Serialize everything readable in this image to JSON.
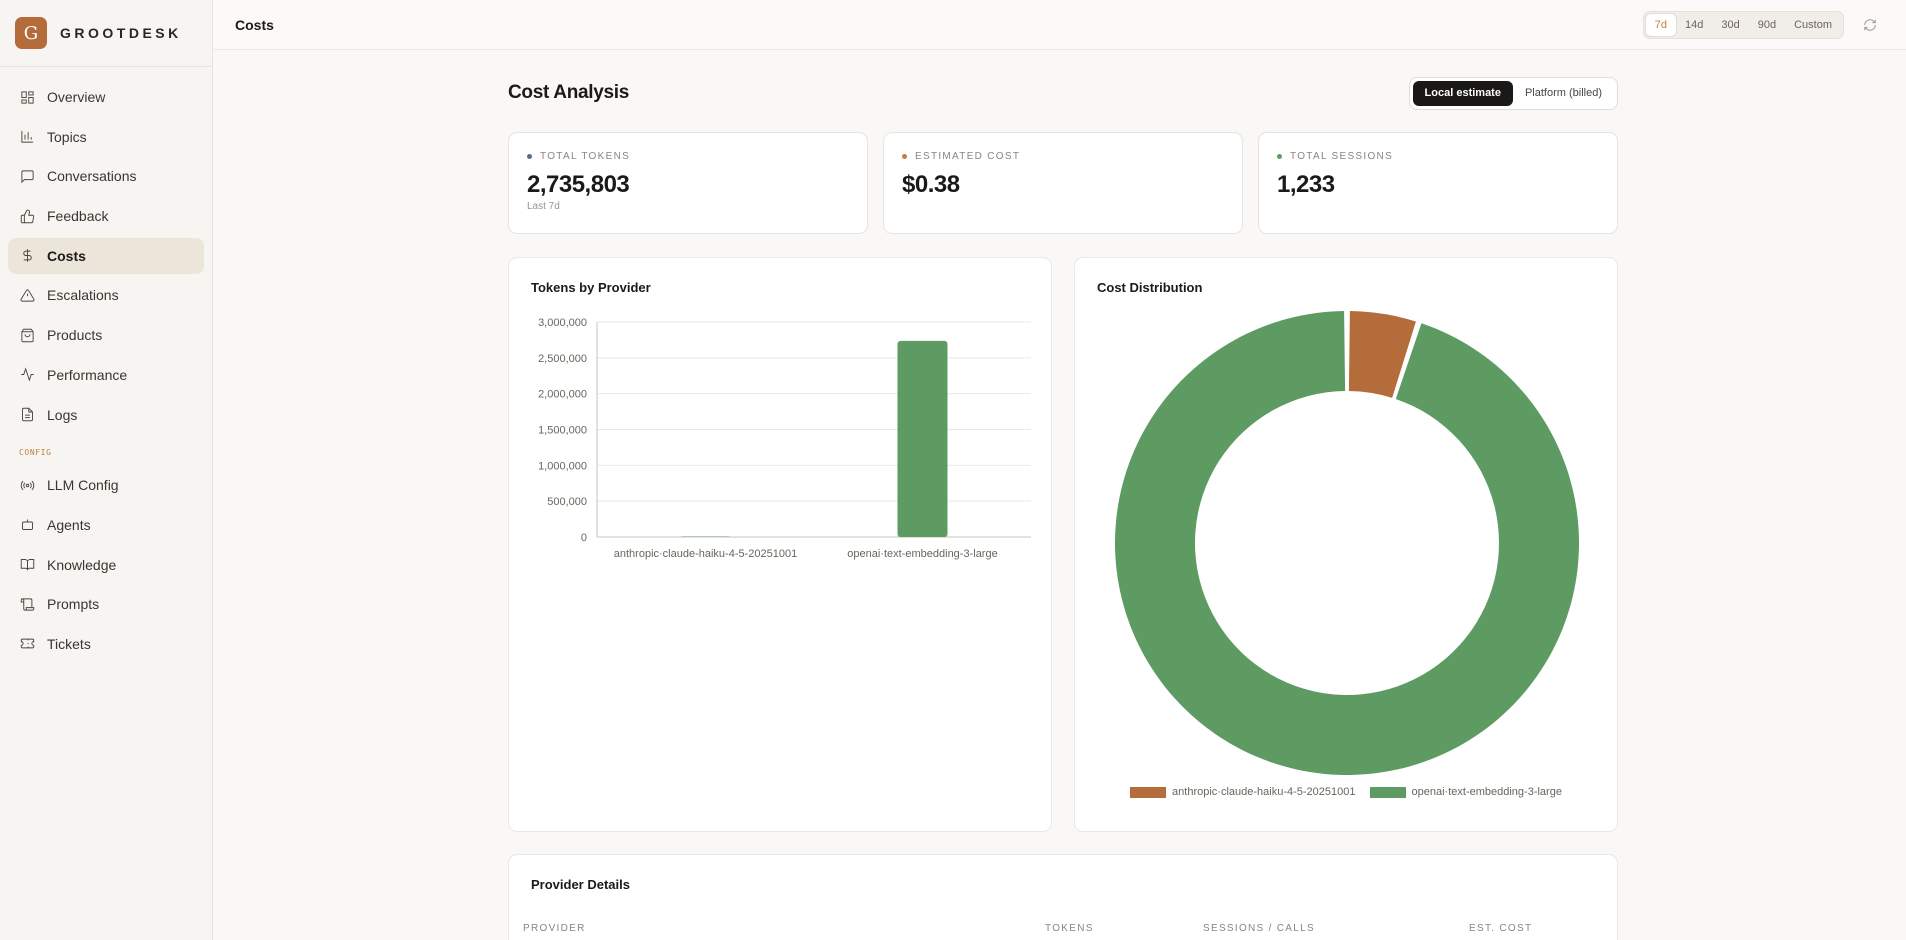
{
  "brand": {
    "letter": "G",
    "name": "GROOTDESK"
  },
  "nav": {
    "items": [
      {
        "label": "Overview",
        "icon": "layout-grid-icon"
      },
      {
        "label": "Topics",
        "icon": "bar-chart-icon"
      },
      {
        "label": "Conversations",
        "icon": "message-square-icon"
      },
      {
        "label": "Feedback",
        "icon": "thumbs-up-icon"
      },
      {
        "label": "Costs",
        "icon": "dollar-icon",
        "active": true
      },
      {
        "label": "Escalations",
        "icon": "alert-triangle-icon"
      },
      {
        "label": "Products",
        "icon": "shopping-bag-icon"
      },
      {
        "label": "Performance",
        "icon": "activity-icon"
      },
      {
        "label": "Logs",
        "icon": "file-text-icon"
      }
    ],
    "config_label": "CONFIG",
    "config_items": [
      {
        "label": "LLM Config",
        "icon": "radio-icon"
      },
      {
        "label": "Agents",
        "icon": "bot-icon"
      },
      {
        "label": "Knowledge",
        "icon": "book-icon"
      },
      {
        "label": "Prompts",
        "icon": "scroll-icon"
      },
      {
        "label": "Tickets",
        "icon": "ticket-icon"
      }
    ]
  },
  "topbar": {
    "title": "Costs",
    "ranges": [
      "7d",
      "14d",
      "30d",
      "90d",
      "Custom"
    ],
    "active_range": "7d"
  },
  "page": {
    "title": "Cost Analysis",
    "modes": [
      "Local estimate",
      "Platform (billed)"
    ],
    "active_mode": "Local estimate"
  },
  "kpis": [
    {
      "label": "TOTAL TOKENS",
      "value": "2,735,803",
      "sub": "Last 7d",
      "color": "#5b6b8c"
    },
    {
      "label": "ESTIMATED COST",
      "value": "$0.38",
      "sub": "",
      "color": "#c0803f"
    },
    {
      "label": "TOTAL SESSIONS",
      "value": "1,233",
      "sub": "",
      "color": "#5e9b63"
    }
  ],
  "colors": {
    "accent": "#b46c3a",
    "green": "#5e9b63",
    "brown": "#b46c3a"
  },
  "chart_data": [
    {
      "type": "bar",
      "title": "Tokens by Provider",
      "categories": [
        "anthropic·claude-haiku-4-5-20251001",
        "openai·text-embedding-3-large"
      ],
      "values": [
        0,
        2735803
      ],
      "ylim": [
        0,
        3000000
      ],
      "yticks": [
        "0",
        "500,000",
        "1,000,000",
        "1,500,000",
        "2,000,000",
        "2,500,000",
        "3,000,000"
      ],
      "color": "#5e9b63",
      "grid": true
    },
    {
      "type": "pie",
      "title": "Cost Distribution",
      "labels": [
        "anthropic·claude-haiku-4-5-20251001",
        "openai·text-embedding-3-large"
      ],
      "values": [
        5,
        95
      ],
      "colors": [
        "#b46c3a",
        "#5e9b63"
      ],
      "legend": "bottom"
    }
  ],
  "details": {
    "title": "Provider Details",
    "columns": [
      "PROVIDER",
      "TOKENS",
      "SESSIONS / CALLS",
      "EST. COST"
    ]
  }
}
